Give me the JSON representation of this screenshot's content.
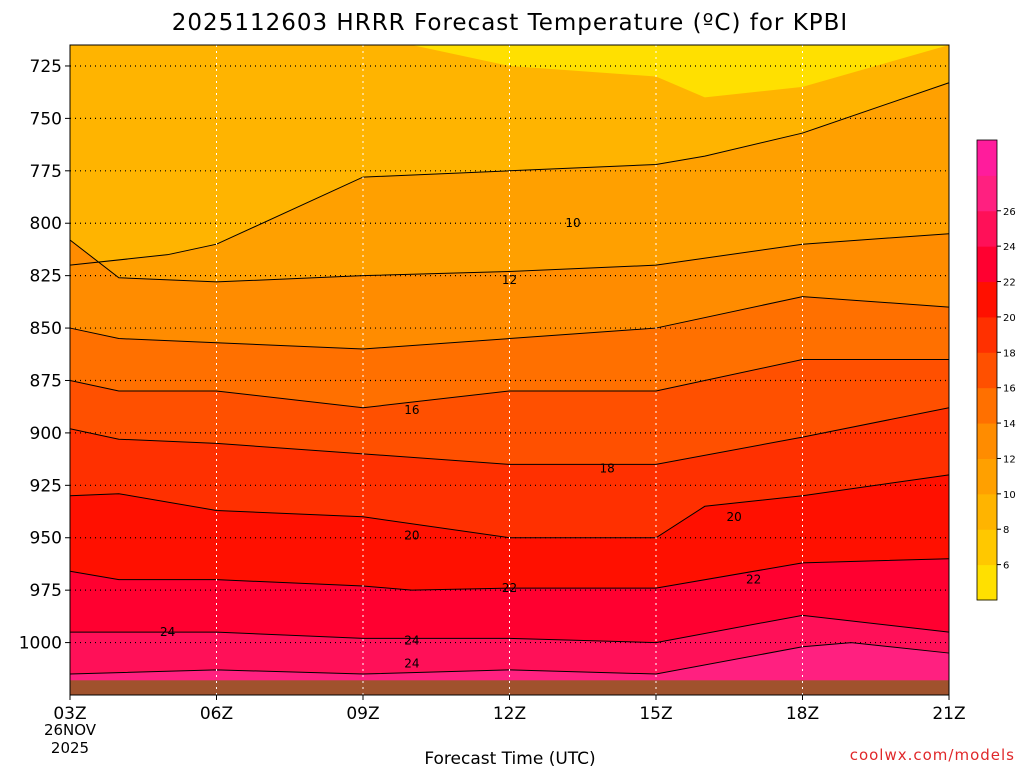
{
  "title": "2025112603 HRRR Forecast Temperature (ºC) for KPBI",
  "xlabel": "Forecast Time (UTC)",
  "date_labels": [
    "26NOV",
    "2025"
  ],
  "credit": "coolwx.com/models",
  "chart_data": {
    "type": "heatmap",
    "title": "2025112603 HRRR Forecast Temperature (ºC) for KPBI",
    "xlabel": "Forecast Time (UTC)",
    "ylabel": "",
    "x_ticks": [
      "03Z",
      "06Z",
      "09Z",
      "12Z",
      "15Z",
      "18Z",
      "21Z"
    ],
    "x_tick_hours": [
      3,
      6,
      9,
      12,
      15,
      18,
      21
    ],
    "xlim": [
      3,
      21
    ],
    "y_ticks": [
      725,
      750,
      775,
      800,
      825,
      850,
      875,
      900,
      925,
      950,
      975,
      1000
    ],
    "ylim": [
      1025,
      715
    ],
    "y_axis": "pressure (hPa), inverted",
    "grid": true,
    "colorbar": {
      "ticks": [
        6,
        8,
        10,
        12,
        14,
        16,
        18,
        20,
        22,
        24,
        26
      ],
      "colors": [
        "#ffe000",
        "#ffc800",
        "#ffb400",
        "#ffa000",
        "#ff8c00",
        "#ff7000",
        "#ff5000",
        "#ff3000",
        "#ff1000",
        "#ff0030",
        "#ff1058",
        "#ff2080",
        "#ff1c9c"
      ]
    },
    "contour_labels": [
      {
        "value": "10",
        "x": 13.3,
        "y": 800
      },
      {
        "value": "12",
        "x": 12.0,
        "y": 827
      },
      {
        "value": "16",
        "x": 10.0,
        "y": 889
      },
      {
        "value": "18",
        "x": 14.0,
        "y": 917
      },
      {
        "value": "20",
        "x": 10.0,
        "y": 949
      },
      {
        "value": "20",
        "x": 16.6,
        "y": 940
      },
      {
        "value": "22",
        "x": 12.0,
        "y": 974
      },
      {
        "value": "22",
        "x": 17.0,
        "y": 970
      },
      {
        "value": "24",
        "x": 5.0,
        "y": 995
      },
      {
        "value": "24",
        "x": 10.0,
        "y": 999
      },
      {
        "value": "24",
        "x": 10.0,
        "y": 1010
      }
    ],
    "series": [
      {
        "name": "",
        "bounds": [
          10,
          8
        ],
        "x": [
          3,
          5,
          6,
          9,
          12,
          15,
          16,
          18,
          21
        ],
        "y": [
          820,
          815,
          810,
          778,
          775,
          772,
          768,
          757,
          733
        ]
      },
      {
        "name": "",
        "bounds": [
          12,
          10
        ],
        "x": [
          3,
          4,
          6,
          9,
          12,
          15,
          18,
          21
        ],
        "y": [
          808,
          826,
          828,
          825,
          823,
          820,
          810,
          805
        ]
      },
      {
        "name": "",
        "bounds": [
          14,
          12
        ],
        "x": [
          3,
          4,
          6,
          9,
          12,
          15,
          18,
          21
        ],
        "y": [
          850,
          855,
          857,
          860,
          855,
          850,
          835,
          840
        ]
      },
      {
        "name": "",
        "bounds": [
          16,
          14
        ],
        "x": [
          3,
          4,
          6,
          9,
          12,
          15,
          18,
          21
        ],
        "y": [
          875,
          880,
          880,
          888,
          880,
          880,
          865,
          865
        ]
      },
      {
        "name": "",
        "bounds": [
          18,
          16
        ],
        "x": [
          3,
          4,
          6,
          9,
          12,
          15,
          18,
          21
        ],
        "y": [
          898,
          903,
          905,
          910,
          915,
          915,
          902,
          888
        ]
      },
      {
        "name": "",
        "bounds": [
          20,
          18
        ],
        "x": [
          3,
          4,
          6,
          9,
          12,
          15,
          16,
          18,
          21
        ],
        "y": [
          930,
          929,
          937,
          940,
          950,
          950,
          935,
          930,
          920
        ]
      },
      {
        "name": "",
        "bounds": [
          22,
          20
        ],
        "x": [
          3,
          4,
          6,
          9,
          10,
          12,
          15,
          18,
          21
        ],
        "y": [
          966,
          970,
          970,
          973,
          975,
          974,
          974,
          962,
          960
        ]
      },
      {
        "name": "",
        "bounds": [
          24,
          22
        ],
        "x": [
          3,
          6,
          9,
          12,
          15,
          18,
          21
        ],
        "y": [
          995,
          995,
          998,
          998,
          1000,
          987,
          995
        ]
      },
      {
        "name": "",
        "bounds": [
          26,
          24
        ],
        "x": [
          3,
          6,
          9,
          12,
          15,
          18,
          19,
          21
        ],
        "y": [
          1015,
          1013,
          1015,
          1013,
          1015,
          1002,
          1000,
          1005
        ]
      }
    ],
    "terrain_color": "#a0522d"
  }
}
